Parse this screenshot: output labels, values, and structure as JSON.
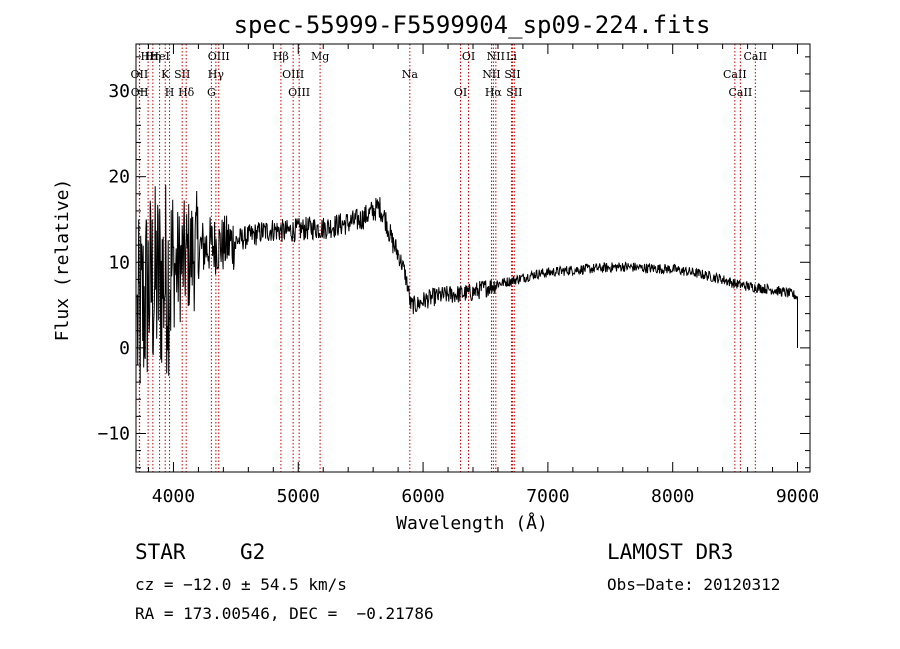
{
  "chart_data": {
    "type": "line",
    "title": "spec-55999-F5599904_sp09-224.fits",
    "xlabel": "Wavelength (Å)",
    "ylabel": "Flux (relative)",
    "xlim": [
      3700,
      9100
    ],
    "ylim": [
      -14.5,
      35.5
    ],
    "x_ticks": [
      4000,
      5000,
      6000,
      7000,
      8000,
      9000
    ],
    "x_tick_labels": [
      "4000",
      "5000",
      "6000",
      "7000",
      "8000",
      "9000"
    ],
    "y_ticks": [
      -10,
      0,
      10,
      20,
      30
    ],
    "y_tick_labels": [
      "−10",
      "0",
      "10",
      "20",
      "30"
    ],
    "spectrum_trend": [
      [
        3700,
        2
      ],
      [
        3740,
        4
      ],
      [
        3800,
        7
      ],
      [
        3900,
        8
      ],
      [
        4000,
        9
      ],
      [
        4100,
        10.5
      ],
      [
        4200,
        11.5
      ],
      [
        4300,
        12
      ],
      [
        4400,
        12
      ],
      [
        4500,
        12.5
      ],
      [
        4600,
        13
      ],
      [
        4700,
        13.5
      ],
      [
        4800,
        13.8
      ],
      [
        4900,
        13.6
      ],
      [
        5000,
        13.8
      ],
      [
        5100,
        14
      ],
      [
        5200,
        14
      ],
      [
        5300,
        14.3
      ],
      [
        5400,
        14.6
      ],
      [
        5500,
        15
      ],
      [
        5600,
        16
      ],
      [
        5650,
        16.5
      ],
      [
        5700,
        15
      ],
      [
        5750,
        12.5
      ],
      [
        5800,
        11
      ],
      [
        5850,
        9
      ],
      [
        5880,
        7
      ],
      [
        5900,
        5
      ],
      [
        5950,
        5
      ],
      [
        6000,
        5.5
      ],
      [
        6100,
        6
      ],
      [
        6200,
        6.2
      ],
      [
        6300,
        6.3
      ],
      [
        6400,
        6.5
      ],
      [
        6500,
        7
      ],
      [
        6600,
        7.5
      ],
      [
        6700,
        7.8
      ],
      [
        6800,
        8.2
      ],
      [
        6900,
        8.6
      ],
      [
        7000,
        8.8
      ],
      [
        7200,
        9.1
      ],
      [
        7400,
        9.3
      ],
      [
        7600,
        9.5
      ],
      [
        7800,
        9.3
      ],
      [
        8000,
        9.2
      ],
      [
        8200,
        8.7
      ],
      [
        8400,
        8.0
      ],
      [
        8500,
        7.5
      ],
      [
        8600,
        7.2
      ],
      [
        8800,
        6.8
      ],
      [
        8950,
        6.3
      ],
      [
        9000,
        6
      ],
      [
        9000,
        0
      ]
    ],
    "line_color": "#000000",
    "marker_color": "#cc0000",
    "line_markers": [
      {
        "name": "Hε",
        "x": 3797
      },
      {
        "name": "OII",
        "x": 3727
      },
      {
        "name": "OII",
        "x": 3729
      },
      {
        "name": "Hη",
        "x": 3835
      },
      {
        "name": "K",
        "x": 3934
      },
      {
        "name": "H",
        "x": 3969
      },
      {
        "name": "HeI",
        "x": 3889
      },
      {
        "name": "SII",
        "x": 4070
      },
      {
        "name": "Hδ",
        "x": 4102
      },
      {
        "name": "OIII",
        "x": 4363
      },
      {
        "name": "Hγ",
        "x": 4340
      },
      {
        "name": "G",
        "x": 4304
      },
      {
        "name": "Hβ",
        "x": 4861
      },
      {
        "name": "OIII",
        "x": 4959
      },
      {
        "name": "OIII",
        "x": 5007
      },
      {
        "name": "Mg",
        "x": 5175
      },
      {
        "name": "Na",
        "x": 5894
      },
      {
        "name": "OI",
        "x": 6300
      },
      {
        "name": "OI",
        "x": 6364
      },
      {
        "name": "NII",
        "x": 6548
      },
      {
        "name": "Hα",
        "x": 6563
      },
      {
        "name": "NII",
        "x": 6583
      },
      {
        "name": "SII",
        "x": 6716
      },
      {
        "name": "SII",
        "x": 6731
      },
      {
        "name": "Li",
        "x": 6708
      },
      {
        "name": "CaII",
        "x": 8498
      },
      {
        "name": "CaII",
        "x": 8542
      },
      {
        "name": "CaII",
        "x": 8662
      }
    ]
  },
  "info": {
    "object_class": "STAR",
    "subclass": "G2",
    "survey": "LAMOST DR3",
    "redshift": "cz = −12.0 ± 54.5 km/s",
    "obs_date": "Obs−Date: 20120312",
    "coords": "RA = 173.00546, DEC =  −0.21786"
  }
}
